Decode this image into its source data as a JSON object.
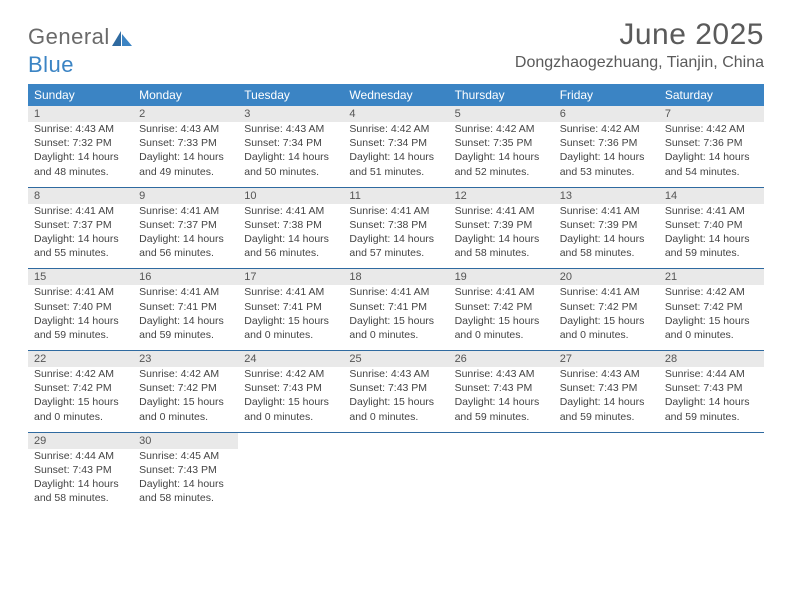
{
  "logo": {
    "general": "General",
    "blue": "Blue"
  },
  "title": "June 2025",
  "location": "Dongzhaogezhuang, Tianjin, China",
  "colors": {
    "header_bg": "#3b84c4",
    "header_text": "#ffffff",
    "daynum_bg": "#e9e9e9",
    "rule": "#2f6aa0",
    "body_text": "#444444",
    "title_text": "#5a5a5a"
  },
  "day_names": [
    "Sunday",
    "Monday",
    "Tuesday",
    "Wednesday",
    "Thursday",
    "Friday",
    "Saturday"
  ],
  "weeks": [
    [
      {
        "n": "1",
        "sr": "4:43 AM",
        "ss": "7:32 PM",
        "dl": "14 hours and 48 minutes."
      },
      {
        "n": "2",
        "sr": "4:43 AM",
        "ss": "7:33 PM",
        "dl": "14 hours and 49 minutes."
      },
      {
        "n": "3",
        "sr": "4:43 AM",
        "ss": "7:34 PM",
        "dl": "14 hours and 50 minutes."
      },
      {
        "n": "4",
        "sr": "4:42 AM",
        "ss": "7:34 PM",
        "dl": "14 hours and 51 minutes."
      },
      {
        "n": "5",
        "sr": "4:42 AM",
        "ss": "7:35 PM",
        "dl": "14 hours and 52 minutes."
      },
      {
        "n": "6",
        "sr": "4:42 AM",
        "ss": "7:36 PM",
        "dl": "14 hours and 53 minutes."
      },
      {
        "n": "7",
        "sr": "4:42 AM",
        "ss": "7:36 PM",
        "dl": "14 hours and 54 minutes."
      }
    ],
    [
      {
        "n": "8",
        "sr": "4:41 AM",
        "ss": "7:37 PM",
        "dl": "14 hours and 55 minutes."
      },
      {
        "n": "9",
        "sr": "4:41 AM",
        "ss": "7:37 PM",
        "dl": "14 hours and 56 minutes."
      },
      {
        "n": "10",
        "sr": "4:41 AM",
        "ss": "7:38 PM",
        "dl": "14 hours and 56 minutes."
      },
      {
        "n": "11",
        "sr": "4:41 AM",
        "ss": "7:38 PM",
        "dl": "14 hours and 57 minutes."
      },
      {
        "n": "12",
        "sr": "4:41 AM",
        "ss": "7:39 PM",
        "dl": "14 hours and 58 minutes."
      },
      {
        "n": "13",
        "sr": "4:41 AM",
        "ss": "7:39 PM",
        "dl": "14 hours and 58 minutes."
      },
      {
        "n": "14",
        "sr": "4:41 AM",
        "ss": "7:40 PM",
        "dl": "14 hours and 59 minutes."
      }
    ],
    [
      {
        "n": "15",
        "sr": "4:41 AM",
        "ss": "7:40 PM",
        "dl": "14 hours and 59 minutes."
      },
      {
        "n": "16",
        "sr": "4:41 AM",
        "ss": "7:41 PM",
        "dl": "14 hours and 59 minutes."
      },
      {
        "n": "17",
        "sr": "4:41 AM",
        "ss": "7:41 PM",
        "dl": "15 hours and 0 minutes."
      },
      {
        "n": "18",
        "sr": "4:41 AM",
        "ss": "7:41 PM",
        "dl": "15 hours and 0 minutes."
      },
      {
        "n": "19",
        "sr": "4:41 AM",
        "ss": "7:42 PM",
        "dl": "15 hours and 0 minutes."
      },
      {
        "n": "20",
        "sr": "4:41 AM",
        "ss": "7:42 PM",
        "dl": "15 hours and 0 minutes."
      },
      {
        "n": "21",
        "sr": "4:42 AM",
        "ss": "7:42 PM",
        "dl": "15 hours and 0 minutes."
      }
    ],
    [
      {
        "n": "22",
        "sr": "4:42 AM",
        "ss": "7:42 PM",
        "dl": "15 hours and 0 minutes."
      },
      {
        "n": "23",
        "sr": "4:42 AM",
        "ss": "7:42 PM",
        "dl": "15 hours and 0 minutes."
      },
      {
        "n": "24",
        "sr": "4:42 AM",
        "ss": "7:43 PM",
        "dl": "15 hours and 0 minutes."
      },
      {
        "n": "25",
        "sr": "4:43 AM",
        "ss": "7:43 PM",
        "dl": "15 hours and 0 minutes."
      },
      {
        "n": "26",
        "sr": "4:43 AM",
        "ss": "7:43 PM",
        "dl": "14 hours and 59 minutes."
      },
      {
        "n": "27",
        "sr": "4:43 AM",
        "ss": "7:43 PM",
        "dl": "14 hours and 59 minutes."
      },
      {
        "n": "28",
        "sr": "4:44 AM",
        "ss": "7:43 PM",
        "dl": "14 hours and 59 minutes."
      }
    ],
    [
      {
        "n": "29",
        "sr": "4:44 AM",
        "ss": "7:43 PM",
        "dl": "14 hours and 58 minutes."
      },
      {
        "n": "30",
        "sr": "4:45 AM",
        "ss": "7:43 PM",
        "dl": "14 hours and 58 minutes."
      },
      null,
      null,
      null,
      null,
      null
    ]
  ],
  "labels": {
    "sunrise": "Sunrise:",
    "sunset": "Sunset:",
    "daylight": "Daylight:"
  }
}
